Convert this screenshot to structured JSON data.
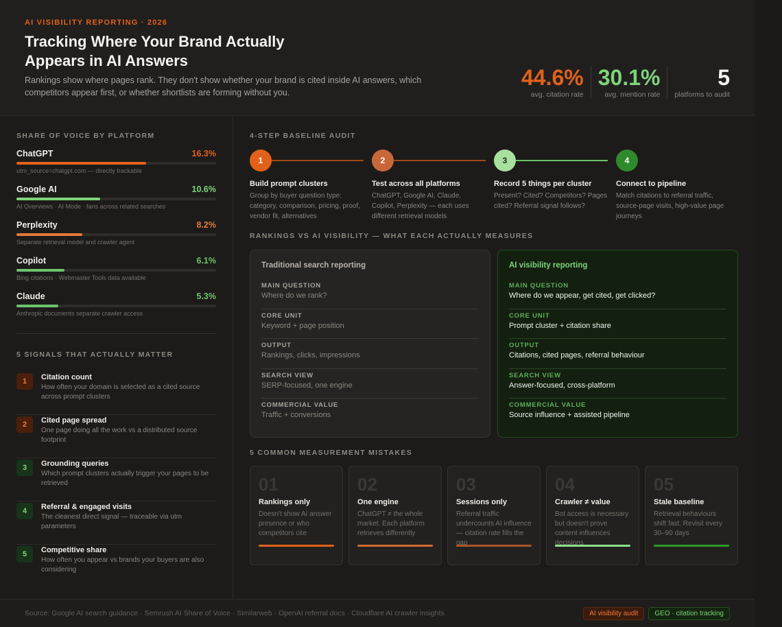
{
  "header": {
    "eyebrow": "AI VISIBILITY REPORTING · 2026",
    "title": "Tracking Where Your Brand Actually Appears in AI Answers",
    "subtitle": "Rankings show where pages rank. They don't show whether your brand is cited inside AI answers, which competitors appear first, or whether shortlists are forming without you.",
    "stats": [
      {
        "value": "44.6%",
        "label": "avg. citation rate",
        "color": "#e2611a"
      },
      {
        "value": "30.1%",
        "label": "avg. mention rate",
        "color": "#7ed47a"
      },
      {
        "value": "5",
        "label": "platforms to audit",
        "color": "#f5f2ee"
      }
    ]
  },
  "share_of_voice": {
    "label": "SHARE OF VOICE BY PLATFORM",
    "items": [
      {
        "name": "ChatGPT",
        "value": "16.3%",
        "fill": 0.65,
        "color": "#e2611a",
        "note": "utm_source=chatgpt.com — directly trackable"
      },
      {
        "name": "Google AI",
        "value": "10.6%",
        "fill": 0.42,
        "color": "#7ed47a",
        "note": "AI Overviews · AI Mode · fans across related searches"
      },
      {
        "name": "Perplexity",
        "value": "8.2%",
        "fill": 0.33,
        "color": "#e07a3a",
        "note": "Separate retrieval model and crawler agent"
      },
      {
        "name": "Copilot",
        "value": "6.1%",
        "fill": 0.24,
        "color": "#6cc46a",
        "note": "Bing citations · Webmaster Tools data available"
      },
      {
        "name": "Claude",
        "value": "5.3%",
        "fill": 0.21,
        "color": "#6cc46a",
        "note": "Anthropic documents separate crawler access"
      }
    ]
  },
  "signals": {
    "label": "5 SIGNALS THAT ACTUALLY MATTER",
    "items": [
      {
        "num": "1",
        "title": "Citation count",
        "desc": "How often your domain is selected as a cited source across prompt clusters",
        "tone": "orange"
      },
      {
        "num": "2",
        "title": "Cited page spread",
        "desc": "One page doing all the work vs a distributed source footprint",
        "tone": "orange"
      },
      {
        "num": "3",
        "title": "Grounding queries",
        "desc": "Which prompt clusters actually trigger your pages to be retrieved",
        "tone": "green"
      },
      {
        "num": "4",
        "title": "Referral & engaged visits",
        "desc": "The cleanest direct signal — traceable via utm parameters",
        "tone": "green"
      },
      {
        "num": "5",
        "title": "Competitive share",
        "desc": "How often you appear vs brands your buyers are also considering",
        "tone": "green"
      }
    ]
  },
  "audit": {
    "label": "4-STEP BASELINE AUDIT",
    "steps": [
      {
        "num": "1",
        "title": "Build prompt clusters",
        "desc": "Group by buyer question type: category, comparison, pricing, proof, vendor fit, alternatives",
        "circle": "#e2611a",
        "text": "#ffffff",
        "line": "#a24a1c"
      },
      {
        "num": "2",
        "title": "Test across all platforms",
        "desc": "ChatGPT, Google AI, Claude, Copilot, Perplexity — each uses different retrieval models",
        "circle": "#c8683a",
        "text": "#ffffff",
        "line": "#a24a1c"
      },
      {
        "num": "3",
        "title": "Record 5 things per cluster",
        "desc": "Present? Cited? Competitors? Pages cited? Referral signal follows?",
        "circle": "#a8e0a0",
        "text": "#1a2a18",
        "line": "#6cc46a"
      },
      {
        "num": "4",
        "title": "Connect to pipeline",
        "desc": "Match citations to referral traffic, source-page visits, high-value page journeys",
        "circle": "#2e8a2a",
        "text": "#ffffff",
        "line": ""
      }
    ]
  },
  "comparison": {
    "label": "RANKINGS VS AI VISIBILITY — WHAT EACH ACTUALLY MEASURES",
    "traditional": {
      "title": "Traditional search reporting",
      "rows": [
        {
          "key": "MAIN QUESTION",
          "value": "Where do we rank?"
        },
        {
          "key": "CORE UNIT",
          "value": "Keyword + page position"
        },
        {
          "key": "OUTPUT",
          "value": "Rankings, clicks, impressions"
        },
        {
          "key": "SEARCH VIEW",
          "value": "SERP-focused, one engine"
        },
        {
          "key": "COMMERCIAL VALUE",
          "value": "Traffic + conversions"
        }
      ]
    },
    "ai": {
      "title": "AI visibility reporting",
      "rows": [
        {
          "key": "MAIN QUESTION",
          "value": "Where do we appear, get cited, get clicked?"
        },
        {
          "key": "CORE UNIT",
          "value": "Prompt cluster + citation share"
        },
        {
          "key": "OUTPUT",
          "value": "Citations, cited pages, referral behaviour"
        },
        {
          "key": "SEARCH VIEW",
          "value": "Answer-focused, cross-platform"
        },
        {
          "key": "COMMERCIAL VALUE",
          "value": "Source influence + assisted pipeline"
        }
      ]
    }
  },
  "mistakes": {
    "label": "5 COMMON MEASUREMENT MISTAKES",
    "items": [
      {
        "num": "01",
        "title": "Rankings only",
        "desc": "Doesn't show AI answer presence or who competitors cite",
        "color": "#e2611a"
      },
      {
        "num": "02",
        "title": "One engine",
        "desc": "ChatGPT ≠ the whole market. Each platform retrieves differently",
        "color": "#d06a32"
      },
      {
        "num": "03",
        "title": "Sessions only",
        "desc": "Referral traffic undercounts AI influence — citation rate fills the gap",
        "color": "#a8552a"
      },
      {
        "num": "04",
        "title": "Crawler ≠ value",
        "desc": "Bot access is necessary but doesn't prove content influences decisions",
        "color": "#8ee08a"
      },
      {
        "num": "05",
        "title": "Stale baseline",
        "desc": "Retrieval behaviours shift fast. Revisit every 30–90 days",
        "color": "#2e9a2a"
      }
    ]
  },
  "footer": {
    "sources": "Source: Google AI search guidance · Semrush AI Share of Voice · Similarweb · OpenAI referral docs · Cloudflare AI crawler insights",
    "tags": [
      "AI visibility audit",
      "GEO · citation tracking"
    ]
  }
}
